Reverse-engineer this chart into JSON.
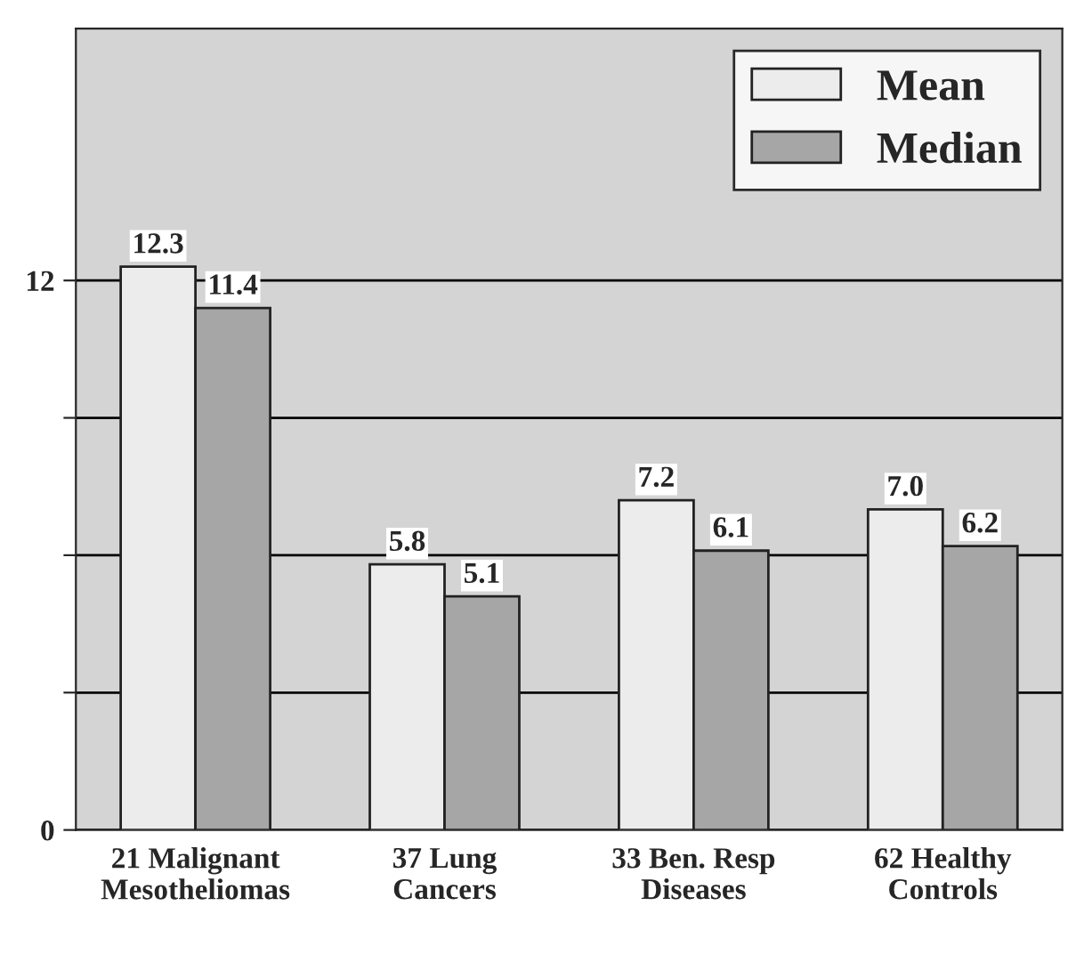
{
  "chart_data": {
    "type": "bar",
    "categories": [
      "21 Malignant\nMesotheliomas",
      "37 Lung\nCancers",
      "33 Ben. Resp\nDiseases",
      "62 Healthy\nControls"
    ],
    "series": [
      {
        "name": "Mean",
        "color": "#ececec",
        "values": [
          12.3,
          5.8,
          7.2,
          7.0
        ],
        "value_labels": [
          "12.3",
          "5.8",
          "7.2",
          "7.0"
        ]
      },
      {
        "name": "Median",
        "color": "#a6a6a6",
        "values": [
          11.4,
          5.1,
          6.1,
          6.2
        ],
        "value_labels": [
          "11.4",
          "5.1",
          "6.1",
          "6.2"
        ]
      }
    ],
    "ylim": [
      0,
      17.5
    ],
    "yticks": [
      0,
      {
        "value": 3,
        "label": null
      },
      {
        "value": 6,
        "label": null
      },
      {
        "value": 9,
        "label": null
      },
      12
    ],
    "grid": "y",
    "legend": "top right"
  }
}
